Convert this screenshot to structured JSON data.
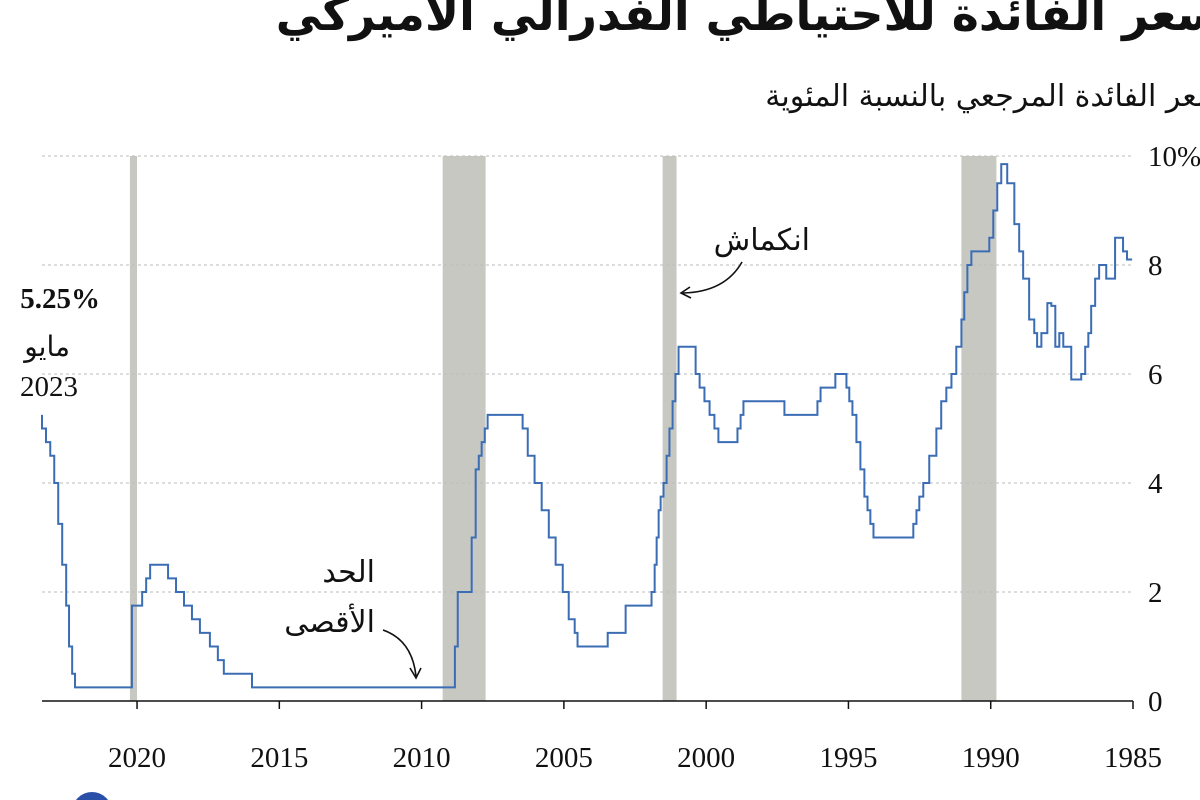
{
  "chart_data": {
    "type": "line",
    "step": "after",
    "title": "سعر الفائدة للاحتياطي الفدرالي الأميركي",
    "subtitle": "سعر الفائدة المرجعي بالنسبة المئوية",
    "xlim": [
      1985,
      2023.34
    ],
    "ylim": [
      0,
      10
    ],
    "xticks": [
      2020,
      2015,
      2010,
      2005,
      2000,
      1995,
      1990,
      1985
    ],
    "yticks": [
      0,
      2,
      4,
      6,
      8,
      {
        "value": 10,
        "label": "10%"
      }
    ],
    "grid": true,
    "recession_color": "#c8c8c3",
    "recessions": [
      [
        2020.0,
        2020.25
      ],
      [
        2007.75,
        2009.26
      ],
      [
        2001.04,
        2001.53
      ],
      [
        1989.8,
        1991.03
      ]
    ],
    "annotations": {
      "recession": "انكماش",
      "upper_bound_1": "الحد",
      "upper_bound_2": "الأقصى",
      "latest_value": "5.25%",
      "latest_month": "مايو",
      "latest_year": "2023"
    },
    "series": [
      {
        "name": "سعر الفائدة",
        "color": "#3b6db5",
        "x": [
          1985.03,
          1985.21,
          1985.35,
          1985.63,
          1985.94,
          1986.19,
          1986.33,
          1986.47,
          1986.57,
          1986.68,
          1986.82,
          1987.17,
          1987.45,
          1987.59,
          1987.73,
          1987.87,
          1988.01,
          1988.22,
          1988.37,
          1988.47,
          1988.65,
          1988.86,
          1989.0,
          1989.17,
          1989.42,
          1989.63,
          1989.77,
          1989.91,
          1990.05,
          1990.68,
          1990.82,
          1990.93,
          1991.03,
          1991.21,
          1991.38,
          1991.56,
          1991.74,
          1991.91,
          1992.16,
          1992.37,
          1992.51,
          1992.61,
          1992.72,
          1994.12,
          1994.23,
          1994.33,
          1994.44,
          1994.58,
          1994.72,
          1994.86,
          1994.97,
          1995.07,
          1995.46,
          1995.98,
          1996.09,
          1997.25,
          1998.69,
          1998.79,
          1998.9,
          1999.57,
          1999.71,
          1999.88,
          2000.06,
          2000.23,
          2000.37,
          2000.97,
          2001.08,
          2001.18,
          2001.29,
          2001.39,
          2001.5,
          2001.6,
          2001.67,
          2001.74,
          2001.81,
          2001.92,
          2002.83,
          2003.46,
          2004.52,
          2004.62,
          2004.83,
          2005.04,
          2005.29,
          2005.53,
          2005.78,
          2006.03,
          2006.27,
          2006.45,
          2007.68,
          2007.78,
          2007.89,
          2007.99,
          2008.1,
          2008.24,
          2008.73,
          2008.83,
          2015.96,
          2016.95,
          2017.16,
          2017.44,
          2017.79,
          2018.07,
          2018.35,
          2018.63,
          2018.91,
          2019.54,
          2019.68,
          2019.82,
          2020.18,
          2022.18,
          2022.28,
          2022.39,
          2022.49,
          2022.63,
          2022.77,
          2022.91,
          2023.05,
          2023.2,
          2023.34
        ],
        "values": [
          8.1,
          8.25,
          8.5,
          7.75,
          8.0,
          7.75,
          7.25,
          6.75,
          6.5,
          6.0,
          5.9,
          6.5,
          6.75,
          6.5,
          7.25,
          7.3,
          6.75,
          6.5,
          6.75,
          7.0,
          7.75,
          8.25,
          8.75,
          9.5,
          9.85,
          9.5,
          9.0,
          8.5,
          8.25,
          8.0,
          7.5,
          7.0,
          6.5,
          6.0,
          5.75,
          5.5,
          5.0,
          4.5,
          4.0,
          3.75,
          3.5,
          3.25,
          3.0,
          3.25,
          3.5,
          3.75,
          4.25,
          4.75,
          5.25,
          5.5,
          5.75,
          6.0,
          5.75,
          5.5,
          5.25,
          5.5,
          5.25,
          5.0,
          4.75,
          5.0,
          5.25,
          5.5,
          5.75,
          6.0,
          6.5,
          6.0,
          5.5,
          5.0,
          4.5,
          4.0,
          3.75,
          3.5,
          3.0,
          2.5,
          2.0,
          1.75,
          1.25,
          1.0,
          1.25,
          1.5,
          2.0,
          2.5,
          3.0,
          3.5,
          4.0,
          4.5,
          5.0,
          5.25,
          5.0,
          4.75,
          4.5,
          4.25,
          3.0,
          2.0,
          1.0,
          0.25,
          0.5,
          0.75,
          1.0,
          1.25,
          1.5,
          1.75,
          2.0,
          2.25,
          2.5,
          2.25,
          2.0,
          1.75,
          0.25,
          0.5,
          1.0,
          1.75,
          2.5,
          3.25,
          4.0,
          4.5,
          4.75,
          5.0,
          5.25
        ]
      }
    ]
  }
}
